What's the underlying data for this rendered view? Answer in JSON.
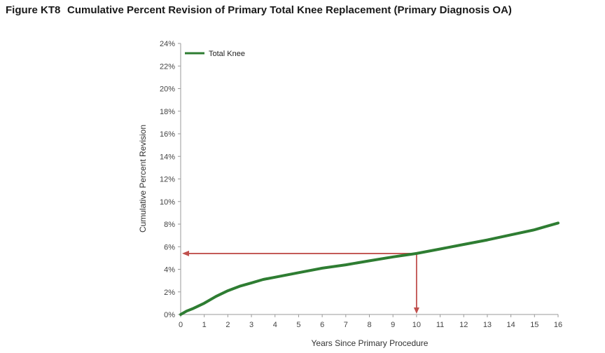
{
  "figure": {
    "label": "Figure KT8",
    "title": "Cumulative Percent Revision of Primary Total Knee Replacement (Primary Diagnosis OA)"
  },
  "chart_data": {
    "type": "line",
    "xlabel": "Years Since Primary Procedure",
    "ylabel": "Cumulative Percent Revision",
    "xlim": [
      0,
      16
    ],
    "ylim": [
      0,
      24
    ],
    "xticks": [
      0,
      1,
      2,
      3,
      4,
      5,
      6,
      7,
      8,
      9,
      10,
      11,
      12,
      13,
      14,
      15,
      16
    ],
    "yticks": [
      0,
      2,
      4,
      6,
      8,
      10,
      12,
      14,
      16,
      18,
      20,
      22,
      24
    ],
    "ytick_labels": [
      "0%",
      "2%",
      "4%",
      "6%",
      "8%",
      "10%",
      "12%",
      "14%",
      "16%",
      "18%",
      "20%",
      "22%",
      "24%"
    ],
    "grid": false,
    "legend_position": "top-left",
    "series": [
      {
        "name": "Total Knee",
        "color": "#2e7d32",
        "x": [
          0,
          0.25,
          0.5,
          1,
          1.5,
          2,
          2.5,
          3,
          3.5,
          4,
          5,
          6,
          7,
          8,
          9,
          10,
          11,
          12,
          13,
          14,
          15,
          15.5,
          16
        ],
        "y": [
          0,
          0.3,
          0.5,
          1.0,
          1.6,
          2.1,
          2.5,
          2.8,
          3.1,
          3.3,
          3.7,
          4.1,
          4.4,
          4.75,
          5.1,
          5.4,
          5.8,
          6.2,
          6.6,
          7.05,
          7.5,
          7.8,
          8.1
        ]
      }
    ],
    "annotation": {
      "x": 10,
      "y": 5.4,
      "color": "#c0504d"
    }
  }
}
